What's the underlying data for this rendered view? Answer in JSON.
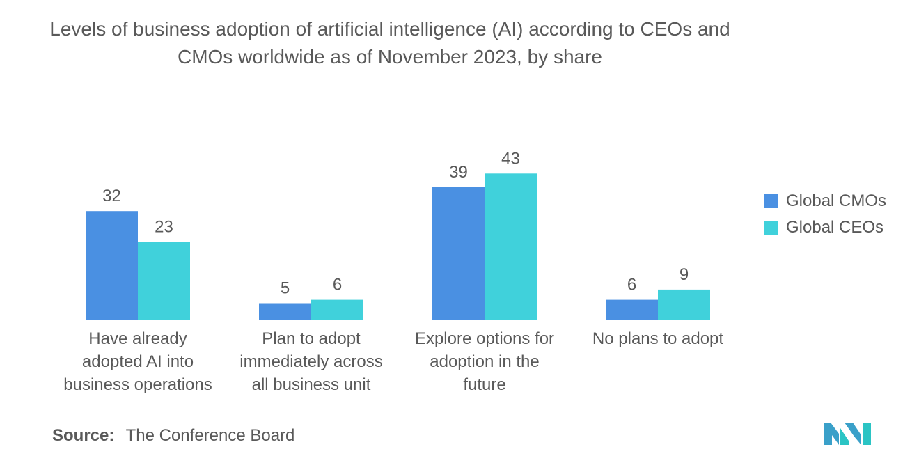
{
  "title": "Levels of business adoption of artificial intelligence (AI) according to CEOs and CMOs worldwide as of November 2023, by share",
  "chart_data": {
    "type": "bar",
    "title": "Levels of business adoption of artificial intelligence (AI) according to CEOs and CMOs worldwide as of November 2023, by share",
    "categories": [
      [
        "Have already",
        "adopted AI into",
        "business operations"
      ],
      [
        "Plan to adopt",
        "immediately across",
        "all business unit"
      ],
      [
        "Explore options for",
        "adoption in the",
        "future"
      ],
      [
        "No plans to adopt"
      ]
    ],
    "series": [
      {
        "name": "Global CMOs",
        "values": [
          32,
          5,
          39,
          6
        ],
        "color": "#4a90e2"
      },
      {
        "name": "Global CEOs",
        "values": [
          23,
          6,
          43,
          9
        ],
        "color": "#40d1db"
      }
    ],
    "ylim": [
      0,
      45
    ],
    "grid": false,
    "legend_position": "right"
  },
  "legend": {
    "items": [
      {
        "label": "Global CMOs",
        "color": "#4a90e2"
      },
      {
        "label": "Global CEOs",
        "color": "#40d1db"
      }
    ]
  },
  "source": {
    "label": "Source:",
    "value": "The Conference Board"
  },
  "logo": {
    "icon": "mordor-intelligence-logo-icon",
    "colors": [
      "#3aa0c9",
      "#2bc4c4"
    ]
  }
}
